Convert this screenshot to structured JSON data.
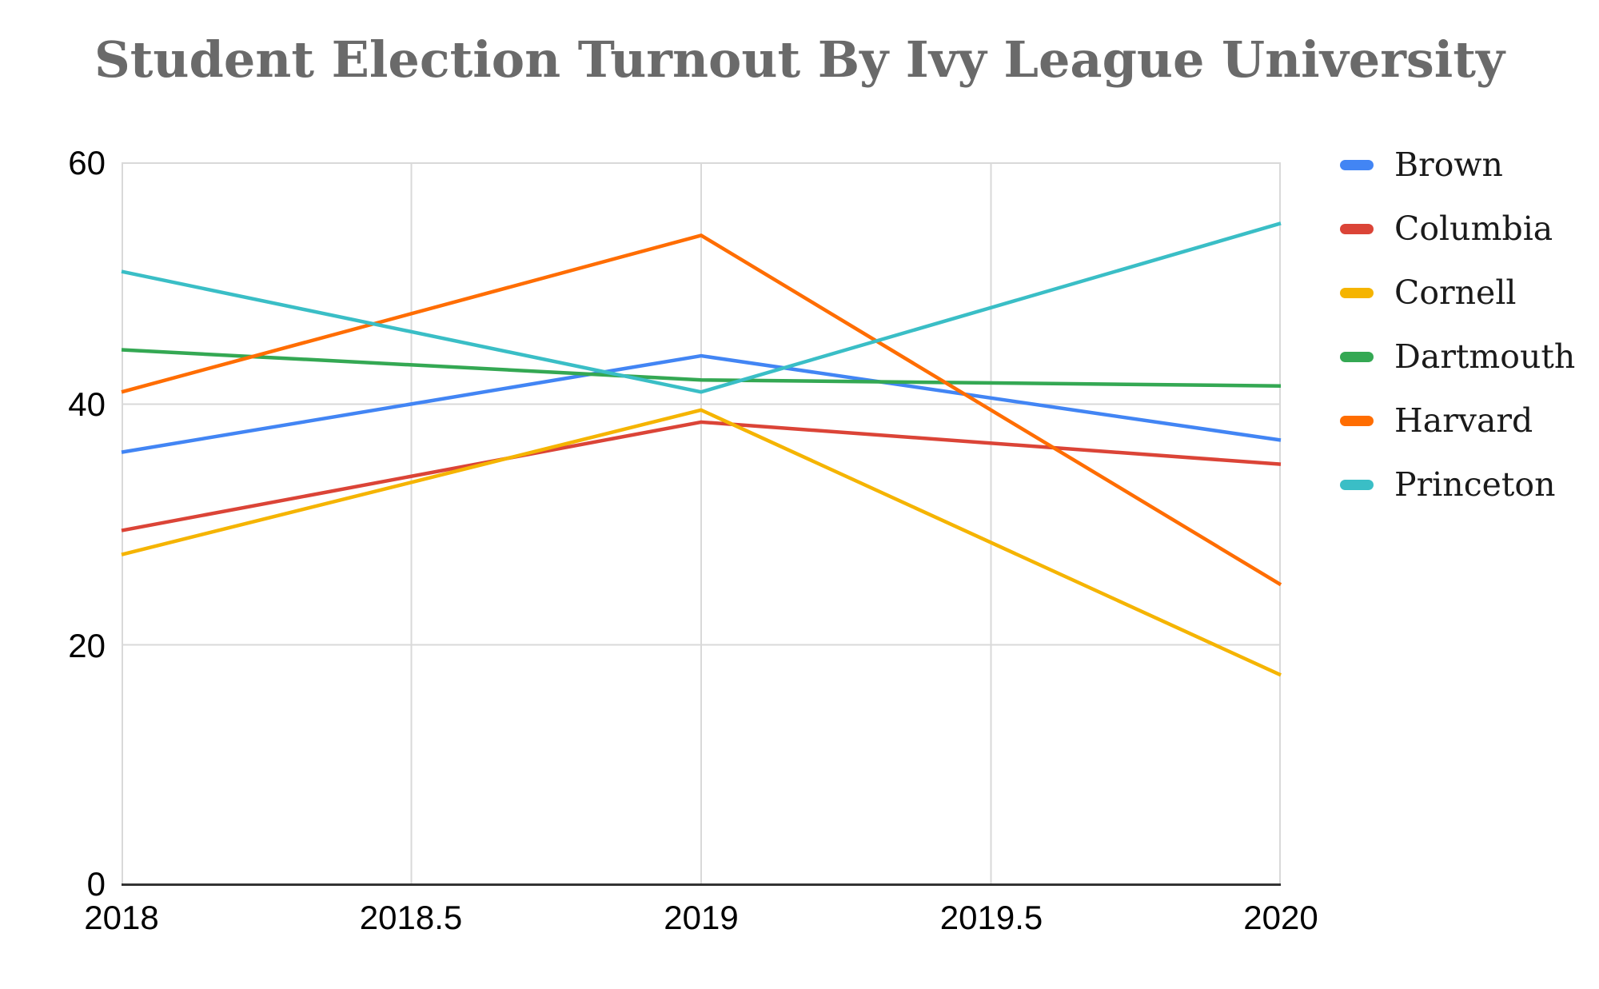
{
  "chart_data": {
    "type": "line",
    "title": "Student Election Turnout By Ivy League University",
    "x": [
      2018,
      2019,
      2020
    ],
    "x_tick_labels": [
      "2018",
      "2018.5",
      "2019",
      "2019.5",
      "2020"
    ],
    "x_tick_values": [
      2018,
      2018.5,
      2019,
      2019.5,
      2020
    ],
    "y_tick_labels": [
      "0",
      "20",
      "40",
      "60"
    ],
    "y_tick_values": [
      0,
      20,
      40,
      60
    ],
    "xlim": [
      2018,
      2020
    ],
    "ylim": [
      0,
      60
    ],
    "grid": true,
    "legend_position": "right",
    "series": [
      {
        "name": "Brown",
        "color": "#4285F4",
        "values": [
          36,
          44,
          37
        ]
      },
      {
        "name": "Columbia",
        "color": "#DB4437",
        "values": [
          29.5,
          38.5,
          35
        ]
      },
      {
        "name": "Cornell",
        "color": "#F5B400",
        "values": [
          27.5,
          39.5,
          17.5
        ]
      },
      {
        "name": "Dartmouth",
        "color": "#34A853",
        "values": [
          44.5,
          42,
          41.5
        ]
      },
      {
        "name": "Harvard",
        "color": "#FF6D01",
        "values": [
          41,
          54,
          25
        ]
      },
      {
        "name": "Princeton",
        "color": "#3ABEC6",
        "values": [
          51,
          41,
          55
        ]
      }
    ],
    "style": {
      "grid_color": "#d9d9d9",
      "axis_color": "#333333",
      "title_color": "#6a6a6a",
      "tick_color": "#000000",
      "line_width": 4.5
    }
  }
}
